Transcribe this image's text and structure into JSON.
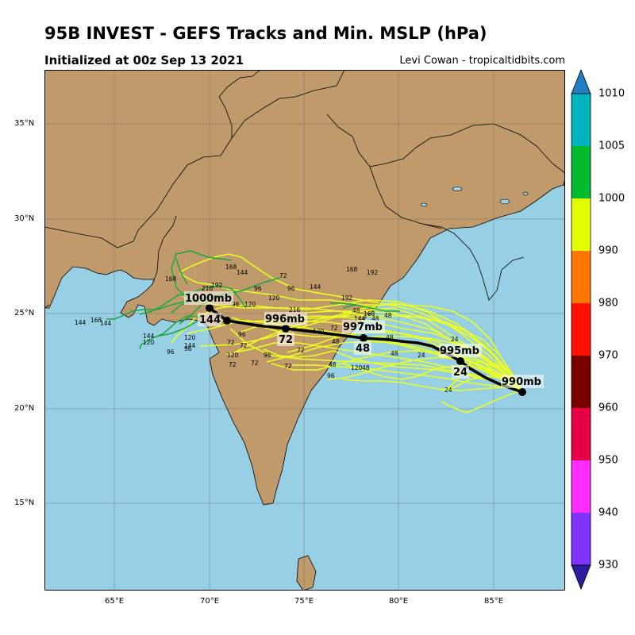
{
  "title": "95B INVEST - GEFS Tracks and Min. MSLP (hPa)",
  "subtitle": "Initialized at 00z Sep 13 2021",
  "credit": "Levi Cowan - tropicaltidbits.com",
  "colors": {
    "land": "#c09a6b",
    "ocean": "#97cfe5",
    "ensemble_yellow": "#ecff1f",
    "ensemble_green": "#17a83e",
    "mean_track": "#000000"
  },
  "map": {
    "lat_labels": [
      "35°N",
      "30°N",
      "25°N",
      "20°N",
      "15°N"
    ],
    "lon_labels": [
      "65°E",
      "70°E",
      "75°E",
      "80°E",
      "85°E"
    ]
  },
  "colorbar": {
    "labels": [
      "1010",
      "1005",
      "1000",
      "990",
      "980",
      "970",
      "960",
      "950",
      "940",
      "930"
    ],
    "colors": [
      "#1f7fc2",
      "#00b5c0",
      "#00bb2d",
      "#e2ff00",
      "#ff7600",
      "#ff1100",
      "#7a0000",
      "#e60045",
      "#ff2bff",
      "#7f33ff",
      "#3a2ad8",
      "#2a1ea0"
    ]
  },
  "mean_track": {
    "pressure_labels": [
      "990mb",
      "995mb",
      "997mb",
      "996mb",
      "1000mb"
    ],
    "hour_labels": [
      "24",
      "48",
      "72",
      "144"
    ]
  },
  "ensemble_hour_labels": [
    "24",
    "48",
    "72",
    "96",
    "120",
    "144",
    "168",
    "192",
    "216"
  ]
}
